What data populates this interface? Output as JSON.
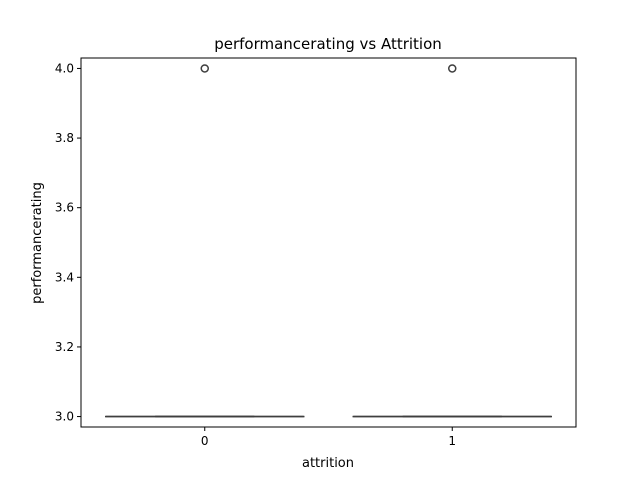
{
  "chart_data": {
    "type": "box",
    "title": "performancerating vs Attrition",
    "xlabel": "attrition",
    "ylabel": "performancerating",
    "categories": [
      "0",
      "1"
    ],
    "ylim": [
      2.97,
      4.03
    ],
    "yticks": [
      3.0,
      3.2,
      3.4,
      3.6,
      3.8,
      4.0
    ],
    "ytick_labels": [
      "3.0",
      "3.2",
      "3.4",
      "3.6",
      "3.8",
      "4.0"
    ],
    "boxes": [
      {
        "category": "0",
        "whisker_low": 3.0,
        "q1": 3.0,
        "median": 3.0,
        "q3": 3.0,
        "whisker_high": 3.0,
        "outliers": [
          4.0
        ]
      },
      {
        "category": "1",
        "whisker_low": 3.0,
        "q1": 3.0,
        "median": 3.0,
        "q3": 3.0,
        "whisker_high": 3.0,
        "outliers": [
          4.0
        ]
      }
    ],
    "grid": false,
    "colors": {
      "box": "#3f3f3f",
      "outlier": "#3f3f3f",
      "axes": "#000000"
    }
  }
}
